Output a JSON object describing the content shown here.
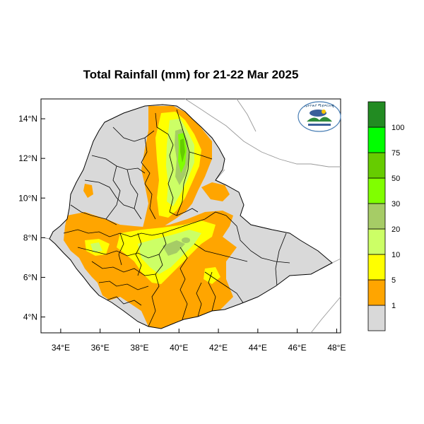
{
  "title": "Total Rainfall (mm) for 21-22 Mar 2025",
  "axes": {
    "x_ticks": [
      "34°E",
      "36°E",
      "38°E",
      "40°E",
      "42°E",
      "44°E",
      "46°E",
      "48°E"
    ],
    "y_ticks": [
      "14°N",
      "12°N",
      "10°N",
      "8°N",
      "6°N",
      "4°N"
    ],
    "lon_range": [
      33.0,
      48.2
    ],
    "lat_range": [
      3.2,
      15.0
    ]
  },
  "legend": {
    "labels": [
      "1",
      "5",
      "10",
      "20",
      "30",
      "50",
      "75",
      "100"
    ],
    "colors": [
      "#d9d9d9",
      "#ffa500",
      "#ffff00",
      "#ccff66",
      "#a6cc66",
      "#80ff00",
      "#66cc00",
      "#00ff00",
      "#228b22"
    ]
  },
  "colors": {
    "land_no_rain": "#d9d9d9",
    "boundary": "#000000",
    "neighbor_border": "#999999"
  },
  "logo": {
    "icon": "ethiopian-meteorology-institute-logo"
  }
}
